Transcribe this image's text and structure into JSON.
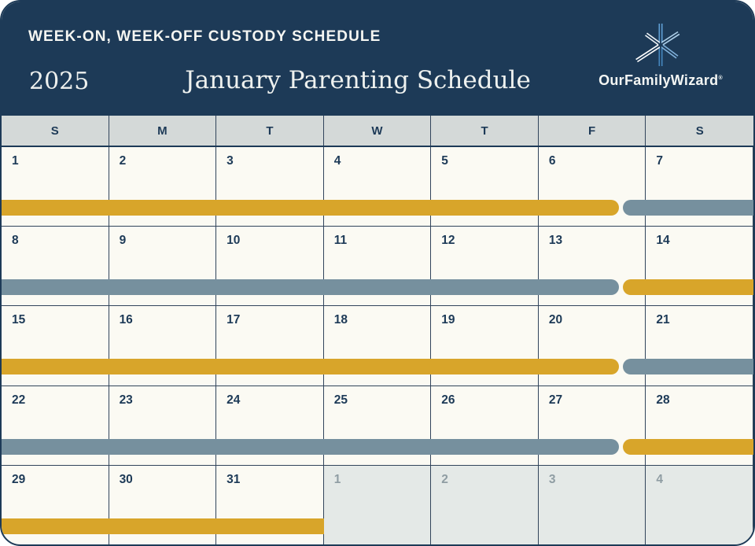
{
  "header": {
    "kicker": "WEEK-ON, WEEK-OFF CUSTODY SCHEDULE",
    "year": "2025",
    "title": "January Parenting Schedule",
    "logo": {
      "name": "OurFamilyWizard",
      "registered_mark": "®",
      "icon": "asterisk-snowflake-icon"
    }
  },
  "colors": {
    "navy": "#1d3a57",
    "gold": "#d8a52a",
    "slate": "#76909e",
    "cream": "#fbfaf3",
    "dow_bg": "#d4d9d8",
    "inactive_bg": "#e4e9e7",
    "inactive_text": "#8f9da3",
    "logo_light_blue": "#aecfe9",
    "logo_mid_blue": "#5f9fd4",
    "logo_deep_blue": "#4587be"
  },
  "calendar": {
    "month": "January",
    "year": "2025",
    "day_headers": [
      "S",
      "M",
      "T",
      "W",
      "T",
      "F",
      "S"
    ],
    "weeks": [
      {
        "days": [
          {
            "label": "1"
          },
          {
            "label": "2"
          },
          {
            "label": "3"
          },
          {
            "label": "4"
          },
          {
            "label": "5"
          },
          {
            "label": "6"
          },
          {
            "label": "7"
          }
        ],
        "bars": [
          {
            "parent": "gold",
            "left_pct": 0,
            "width_pct": 82.1,
            "cap": "right"
          },
          {
            "parent": "slate",
            "left_pct": 82.6,
            "width_pct": 17.4,
            "cap": "left"
          }
        ]
      },
      {
        "days": [
          {
            "label": "8"
          },
          {
            "label": "9"
          },
          {
            "label": "10"
          },
          {
            "label": "11"
          },
          {
            "label": "12"
          },
          {
            "label": "13"
          },
          {
            "label": "14"
          }
        ],
        "bars": [
          {
            "parent": "slate",
            "left_pct": 0,
            "width_pct": 82.1,
            "cap": "right"
          },
          {
            "parent": "gold",
            "left_pct": 82.6,
            "width_pct": 17.4,
            "cap": "left"
          }
        ]
      },
      {
        "days": [
          {
            "label": "15"
          },
          {
            "label": "16"
          },
          {
            "label": "17"
          },
          {
            "label": "18"
          },
          {
            "label": "19"
          },
          {
            "label": "20"
          },
          {
            "label": "21"
          }
        ],
        "bars": [
          {
            "parent": "gold",
            "left_pct": 0,
            "width_pct": 82.1,
            "cap": "right"
          },
          {
            "parent": "slate",
            "left_pct": 82.6,
            "width_pct": 17.4,
            "cap": "left"
          }
        ]
      },
      {
        "days": [
          {
            "label": "22"
          },
          {
            "label": "23"
          },
          {
            "label": "24"
          },
          {
            "label": "25"
          },
          {
            "label": "26"
          },
          {
            "label": "27"
          },
          {
            "label": "28"
          }
        ],
        "bars": [
          {
            "parent": "slate",
            "left_pct": 0,
            "width_pct": 82.1,
            "cap": "right"
          },
          {
            "parent": "gold",
            "left_pct": 82.6,
            "width_pct": 17.4,
            "cap": "left"
          }
        ]
      },
      {
        "days": [
          {
            "label": "29"
          },
          {
            "label": "30"
          },
          {
            "label": "31"
          },
          {
            "label": "1",
            "inactive": true
          },
          {
            "label": "2",
            "inactive": true
          },
          {
            "label": "3",
            "inactive": true
          },
          {
            "label": "4",
            "inactive": true
          }
        ],
        "bars": [
          {
            "parent": "gold",
            "left_pct": 0,
            "width_pct": 42.86,
            "cap": "none"
          }
        ]
      }
    ]
  }
}
